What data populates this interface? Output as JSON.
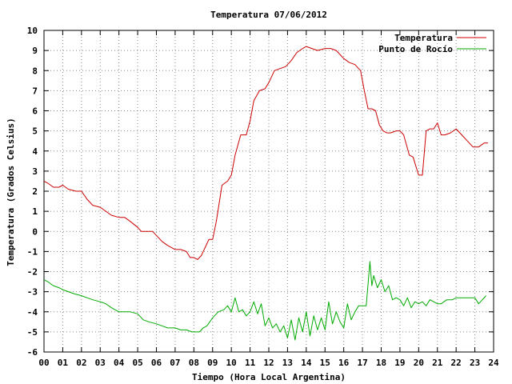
{
  "chart_data": {
    "type": "line",
    "title": "Temperatura 07/06/2012",
    "xlabel": "Tiempo (Hora Local Argentina)",
    "ylabel": "Temperatura (Grados Celsius)",
    "xlim": [
      0,
      24
    ],
    "ylim": [
      -6,
      10
    ],
    "x_ticks": [
      "00",
      "01",
      "02",
      "03",
      "04",
      "05",
      "06",
      "07",
      "08",
      "09",
      "10",
      "11",
      "12",
      "13",
      "14",
      "15",
      "16",
      "17",
      "18",
      "19",
      "20",
      "21",
      "22",
      "23",
      "24"
    ],
    "y_ticks": [
      "-6",
      "-5",
      "-4",
      "-3",
      "-2",
      "-1",
      "0",
      "1",
      "2",
      "3",
      "4",
      "5",
      "6",
      "7",
      "8",
      "9",
      "10"
    ],
    "grid": true,
    "legend_position": "top-right",
    "series": [
      {
        "name": "Temperatura",
        "color": "#cc0000",
        "x": [
          0.0,
          0.2,
          0.5,
          0.8,
          1.0,
          1.3,
          1.7,
          2.0,
          2.3,
          2.6,
          3.0,
          3.3,
          3.6,
          4.0,
          4.3,
          4.6,
          5.0,
          5.2,
          5.5,
          5.8,
          6.0,
          6.3,
          6.6,
          7.0,
          7.3,
          7.6,
          7.8,
          8.0,
          8.2,
          8.4,
          8.6,
          8.8,
          9.0,
          9.2,
          9.5,
          9.8,
          10.0,
          10.2,
          10.5,
          10.8,
          11.0,
          11.2,
          11.5,
          11.8,
          12.0,
          12.3,
          12.6,
          12.9,
          13.2,
          13.5,
          13.8,
          14.0,
          14.3,
          14.6,
          15.0,
          15.3,
          15.6,
          16.0,
          16.3,
          16.6,
          16.9,
          17.1,
          17.3,
          17.5,
          17.7,
          17.9,
          18.1,
          18.3,
          18.5,
          18.8,
          19.0,
          19.2,
          19.5,
          19.7,
          20.0,
          20.2,
          20.4,
          20.6,
          20.8,
          21.0,
          21.2,
          21.4,
          21.7,
          22.0,
          22.3,
          22.6,
          22.9,
          23.2,
          23.5,
          23.7
        ],
        "values": [
          2.5,
          2.4,
          2.2,
          2.2,
          2.3,
          2.1,
          2.0,
          2.0,
          1.6,
          1.3,
          1.2,
          1.0,
          0.8,
          0.7,
          0.7,
          0.5,
          0.2,
          0.0,
          0.0,
          0.0,
          -0.2,
          -0.5,
          -0.7,
          -0.9,
          -0.9,
          -1.0,
          -1.3,
          -1.3,
          -1.4,
          -1.2,
          -0.8,
          -0.4,
          -0.4,
          0.5,
          2.3,
          2.5,
          2.8,
          3.8,
          4.8,
          4.8,
          5.5,
          6.5,
          7.0,
          7.1,
          7.4,
          8.0,
          8.1,
          8.2,
          8.5,
          8.9,
          9.1,
          9.2,
          9.1,
          9.0,
          9.1,
          9.1,
          9.0,
          8.6,
          8.4,
          8.3,
          8.0,
          7.0,
          6.1,
          6.1,
          6.0,
          5.3,
          5.0,
          4.9,
          4.9,
          5.0,
          5.0,
          4.8,
          3.8,
          3.7,
          2.8,
          2.8,
          5.0,
          5.1,
          5.1,
          5.4,
          4.8,
          4.8,
          4.9,
          5.1,
          4.8,
          4.5,
          4.2,
          4.2,
          4.4,
          4.4
        ]
      },
      {
        "name": "Punto de Rocío",
        "color": "#00aa00",
        "x": [
          0.0,
          0.2,
          0.5,
          0.8,
          1.0,
          1.3,
          1.6,
          2.0,
          2.3,
          2.6,
          3.0,
          3.3,
          3.6,
          4.0,
          4.3,
          4.6,
          5.0,
          5.3,
          5.6,
          6.0,
          6.3,
          6.6,
          7.0,
          7.3,
          7.6,
          7.9,
          8.1,
          8.3,
          8.5,
          8.7,
          9.0,
          9.3,
          9.6,
          9.8,
          10.0,
          10.2,
          10.4,
          10.6,
          10.8,
          11.0,
          11.2,
          11.4,
          11.6,
          11.8,
          12.0,
          12.2,
          12.4,
          12.6,
          12.8,
          13.0,
          13.2,
          13.4,
          13.6,
          13.8,
          14.0,
          14.2,
          14.4,
          14.6,
          14.8,
          15.0,
          15.2,
          15.4,
          15.6,
          15.8,
          16.0,
          16.2,
          16.4,
          16.6,
          16.8,
          17.0,
          17.2,
          17.4,
          17.5,
          17.6,
          17.8,
          18.0,
          18.2,
          18.4,
          18.6,
          18.8,
          19.0,
          19.2,
          19.4,
          19.6,
          19.8,
          20.0,
          20.2,
          20.4,
          20.6,
          20.8,
          21.0,
          21.2,
          21.5,
          21.8,
          22.0,
          22.3,
          22.6,
          23.0,
          23.2,
          23.4,
          23.6
        ],
        "values": [
          -2.4,
          -2.5,
          -2.7,
          -2.8,
          -2.9,
          -3.0,
          -3.1,
          -3.2,
          -3.3,
          -3.4,
          -3.5,
          -3.6,
          -3.8,
          -4.0,
          -4.0,
          -4.0,
          -4.1,
          -4.4,
          -4.5,
          -4.6,
          -4.7,
          -4.8,
          -4.8,
          -4.9,
          -4.9,
          -5.0,
          -5.0,
          -5.0,
          -4.8,
          -4.7,
          -4.3,
          -4.0,
          -3.9,
          -3.7,
          -4.0,
          -3.3,
          -4.0,
          -3.9,
          -4.2,
          -4.0,
          -3.5,
          -4.1,
          -3.6,
          -4.7,
          -4.3,
          -4.8,
          -4.6,
          -5.0,
          -4.7,
          -5.3,
          -4.4,
          -5.4,
          -4.3,
          -5.0,
          -4.0,
          -5.2,
          -4.2,
          -4.9,
          -4.3,
          -4.9,
          -3.5,
          -4.6,
          -4.0,
          -4.5,
          -4.8,
          -3.6,
          -4.4,
          -4.0,
          -3.7,
          -3.7,
          -3.7,
          -1.5,
          -2.7,
          -2.2,
          -2.8,
          -2.4,
          -3.0,
          -2.7,
          -3.4,
          -3.3,
          -3.4,
          -3.7,
          -3.3,
          -3.8,
          -3.5,
          -3.6,
          -3.5,
          -3.7,
          -3.4,
          -3.5,
          -3.6,
          -3.6,
          -3.4,
          -3.4,
          -3.3,
          -3.3,
          -3.3,
          -3.3,
          -3.6,
          -3.4,
          -3.2
        ]
      }
    ]
  }
}
